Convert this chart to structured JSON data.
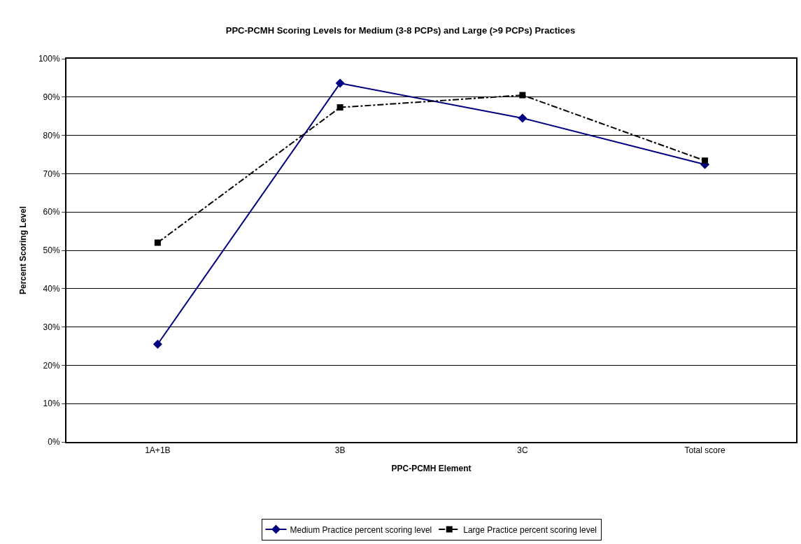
{
  "chart_data": {
    "type": "line",
    "title": "PPC-PCMH Scoring Levels for Medium (3-8 PCPs) and Large (>9 PCPs) Practices",
    "xlabel": "PPC-PCMH Element",
    "ylabel": "Percent Scoring Level",
    "categories": [
      "1A+1B",
      "3B",
      "3C",
      "Total score"
    ],
    "series": [
      {
        "name": "Medium Practice percent scoring level",
        "color": "#000080",
        "marker": "diamond",
        "line_style": "solid",
        "values": [
          25.5,
          93.6,
          84.5,
          72.4
        ]
      },
      {
        "name": "Large Practice percent scoring level",
        "color": "#000000",
        "marker": "square",
        "line_style": "dashdot",
        "values": [
          52.0,
          87.3,
          90.5,
          73.4
        ]
      }
    ],
    "ylim": [
      0,
      100
    ],
    "yticks": [
      {
        "value": 0,
        "label": "0%"
      },
      {
        "value": 10,
        "label": "10%"
      },
      {
        "value": 20,
        "label": "20%"
      },
      {
        "value": 30,
        "label": "30%"
      },
      {
        "value": 40,
        "label": "40%"
      },
      {
        "value": 50,
        "label": "50%"
      },
      {
        "value": 60,
        "label": "60%"
      },
      {
        "value": 70,
        "label": "70%"
      },
      {
        "value": 80,
        "label": "80%"
      },
      {
        "value": 90,
        "label": "90%"
      },
      {
        "value": 100,
        "label": "100%"
      }
    ],
    "grid": "y",
    "legend": "bottom"
  }
}
